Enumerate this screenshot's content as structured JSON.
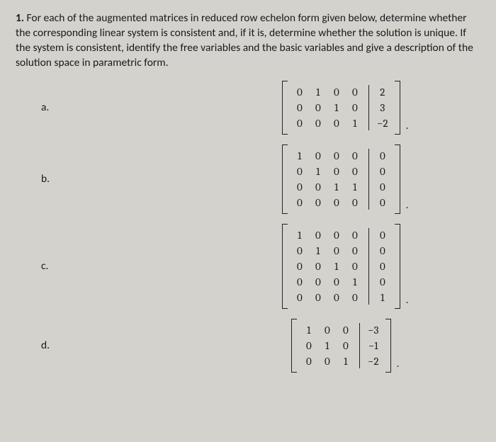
{
  "question_number": "1.",
  "question_text": "For each of the augmented matrices in reduced row echelon form given below, determine whether the corresponding linear system is consistent and, if it is, determine whether the solution is unique. If the system is consistent, identify the free variables and the basic variables and give a description of the solution space in parametric form.",
  "parts": [
    {
      "label": "a.",
      "left": [
        [
          "0",
          "1",
          "0",
          "0"
        ],
        [
          "0",
          "0",
          "1",
          "0"
        ],
        [
          "0",
          "0",
          "0",
          "1"
        ]
      ],
      "right": [
        [
          "2"
        ],
        [
          "3"
        ],
        [
          "−2"
        ]
      ],
      "trailing": "."
    },
    {
      "label": "b.",
      "left": [
        [
          "1",
          "0",
          "0",
          "0"
        ],
        [
          "0",
          "1",
          "0",
          "0"
        ],
        [
          "0",
          "0",
          "1",
          "1"
        ],
        [
          "0",
          "0",
          "0",
          "0"
        ]
      ],
      "right": [
        [
          "0"
        ],
        [
          "0"
        ],
        [
          "0"
        ],
        [
          "0"
        ]
      ],
      "trailing": "."
    },
    {
      "label": "c.",
      "left": [
        [
          "1",
          "0",
          "0",
          "0"
        ],
        [
          "0",
          "1",
          "0",
          "0"
        ],
        [
          "0",
          "0",
          "1",
          "0"
        ],
        [
          "0",
          "0",
          "0",
          "1"
        ],
        [
          "0",
          "0",
          "0",
          "0"
        ]
      ],
      "right": [
        [
          "0"
        ],
        [
          "0"
        ],
        [
          "0"
        ],
        [
          "0"
        ],
        [
          "1"
        ]
      ],
      "trailing": "."
    },
    {
      "label": "d.",
      "left": [
        [
          "1",
          "0",
          "0"
        ],
        [
          "0",
          "1",
          "0"
        ],
        [
          "0",
          "0",
          "1"
        ]
      ],
      "right": [
        [
          "−3"
        ],
        [
          "−1"
        ],
        [
          "−2"
        ]
      ],
      "trailing": "."
    }
  ]
}
